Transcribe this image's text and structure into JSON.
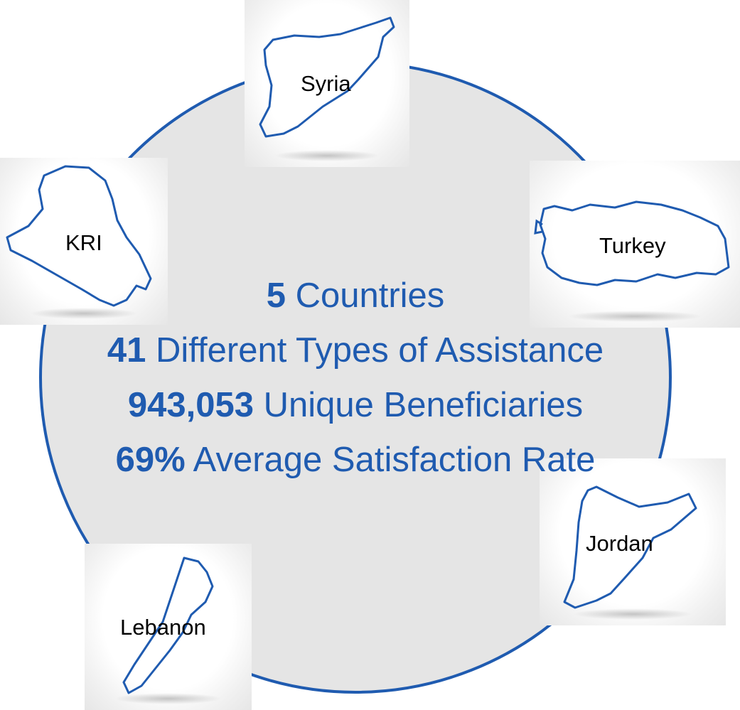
{
  "countries": [
    {
      "id": "syria",
      "label": "Syria"
    },
    {
      "id": "turkey",
      "label": "Turkey"
    },
    {
      "id": "kri",
      "label": "KRI"
    },
    {
      "id": "jordan",
      "label": "Jordan"
    },
    {
      "id": "lebanon",
      "label": "Lebanon"
    }
  ],
  "stats": [
    {
      "value": "5",
      "text": "Countries"
    },
    {
      "value": "41",
      "text": "Different Types of Assistance"
    },
    {
      "value": "943,053",
      "text": "Unique Beneficiaries"
    },
    {
      "value": "69%",
      "text": "Average Satisfaction Rate"
    }
  ],
  "colors": {
    "accent": "#1f5bb0",
    "circle_fill": "#e5e5e5",
    "map_outline": "#1f5bb0"
  }
}
